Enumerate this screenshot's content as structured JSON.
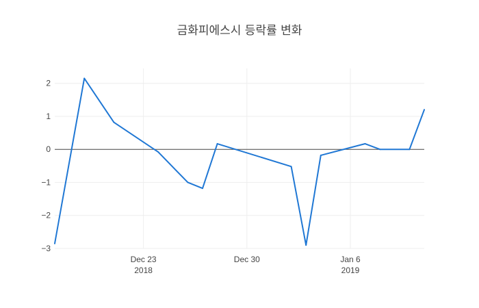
{
  "chart_data": {
    "type": "line",
    "title": "금화피에스시 등락률 변화",
    "x_axis": {
      "range": [
        "2018-12-17",
        "2019-01-11"
      ],
      "ticks": [
        {
          "date": "2018-12-23",
          "label": "Dec 23",
          "sublabel": "2018"
        },
        {
          "date": "2018-12-30",
          "label": "Dec 30",
          "sublabel": ""
        },
        {
          "date": "2019-01-06",
          "label": "Jan 6",
          "sublabel": "2019"
        }
      ]
    },
    "y_axis": {
      "range": [
        -3.0,
        2.45
      ],
      "ticks": [
        {
          "value": 2,
          "label": "2"
        },
        {
          "value": 1,
          "label": "1"
        },
        {
          "value": 0,
          "label": "0"
        },
        {
          "value": -1,
          "label": "−1"
        },
        {
          "value": -2,
          "label": "−2"
        },
        {
          "value": -3,
          "label": "−3"
        }
      ],
      "zeroline": true
    },
    "grid": true,
    "series": [
      {
        "color": "#1f77d4",
        "points": [
          {
            "x": "2018-12-17",
            "y": -2.85
          },
          {
            "x": "2018-12-19",
            "y": 2.15
          },
          {
            "x": "2018-12-21",
            "y": 0.82
          },
          {
            "x": "2018-12-24",
            "y": -0.08
          },
          {
            "x": "2018-12-26",
            "y": -1.0
          },
          {
            "x": "2018-12-27",
            "y": -1.18
          },
          {
            "x": "2018-12-28",
            "y": 0.17
          },
          {
            "x": "2019-01-02",
            "y": -0.52
          },
          {
            "x": "2019-01-03",
            "y": -2.9
          },
          {
            "x": "2019-01-04",
            "y": -0.18
          },
          {
            "x": "2019-01-07",
            "y": 0.17
          },
          {
            "x": "2019-01-08",
            "y": 0.0
          },
          {
            "x": "2019-01-10",
            "y": 0.0
          },
          {
            "x": "2019-01-11",
            "y": 1.2
          }
        ]
      }
    ]
  }
}
